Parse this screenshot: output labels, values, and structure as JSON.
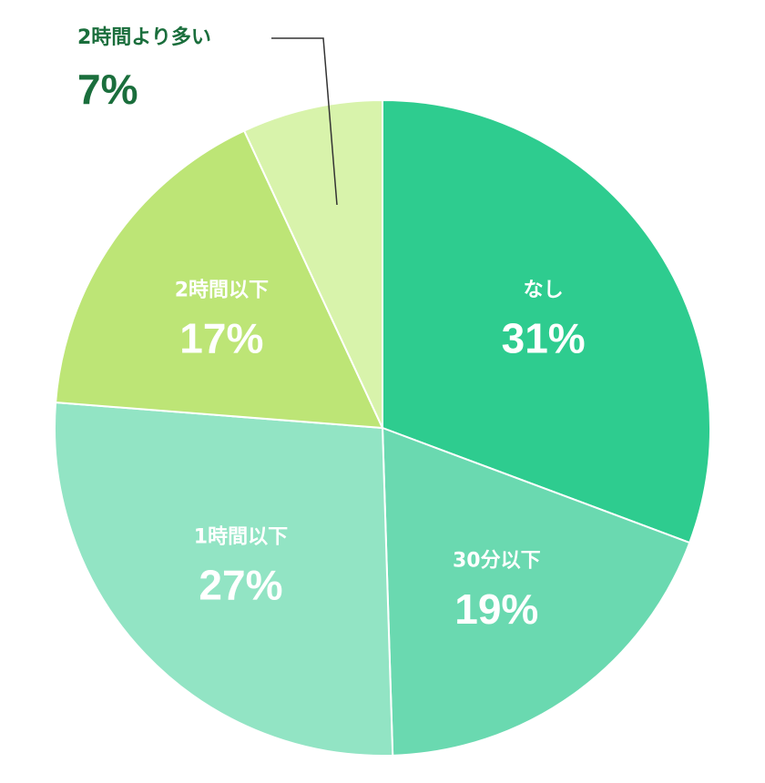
{
  "chart_data": {
    "type": "pie",
    "categories": [
      "なし",
      "30分以下",
      "1時間以下",
      "2時間以下",
      "2時間より多い"
    ],
    "values": [
      31,
      19,
      27,
      17,
      7
    ],
    "value_labels": [
      "31%",
      "19%",
      "27%",
      "17%",
      "7%"
    ],
    "colors": [
      "#2ecc8f",
      "#6ad9b0",
      "#92e4c4",
      "#bde576",
      "#d8f3ab"
    ]
  }
}
